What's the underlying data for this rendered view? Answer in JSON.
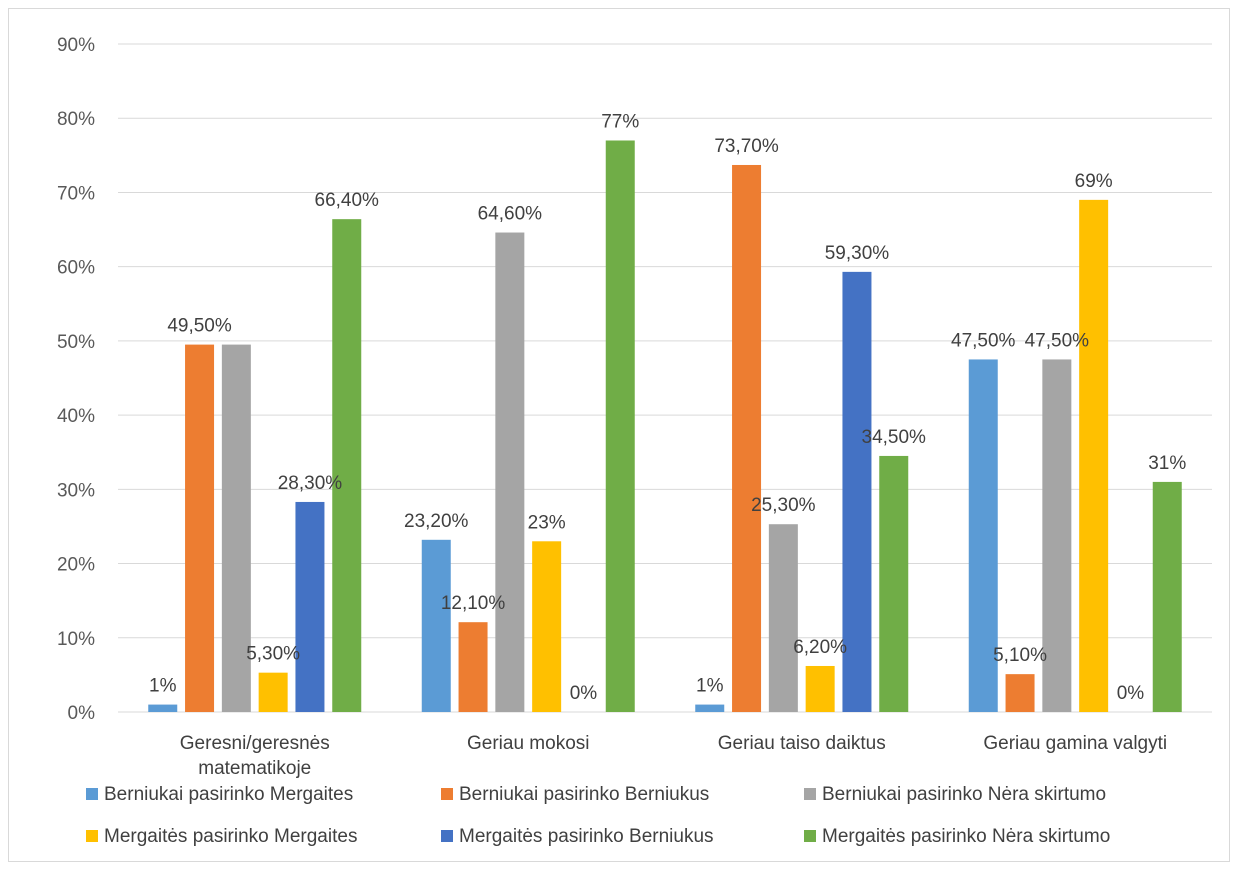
{
  "chart_data": {
    "type": "bar",
    "categories": [
      [
        "Geresni/geresnės",
        "matematikoje"
      ],
      [
        "Geriau mokosi"
      ],
      [
        "Geriau taiso daiktus"
      ],
      [
        "Geriau gamina valgyti"
      ]
    ],
    "series": [
      {
        "name": "Berniukai pasirinko Mergaites",
        "color": "#5b9bd5",
        "values": [
          1,
          23.2,
          1,
          47.5
        ],
        "labels": [
          "1%",
          "23,20%",
          "1%",
          "47,50%"
        ]
      },
      {
        "name": "Berniukai pasirinko Berniukus",
        "color": "#ed7d31",
        "values": [
          49.5,
          12.1,
          73.7,
          5.1
        ],
        "labels": [
          "49,50%",
          "12,10%",
          "73,70%",
          "5,10%"
        ]
      },
      {
        "name": "Berniukai pasirinko Nėra skirtumo",
        "color": "#a5a5a5",
        "values": [
          49.5,
          64.6,
          25.3,
          47.5
        ],
        "labels": [
          "",
          "64,60%",
          "25,30%",
          "47,50%"
        ]
      },
      {
        "name": "Mergaitės pasirinko Mergaites",
        "color": "#ffc000",
        "values": [
          5.3,
          23,
          6.2,
          69
        ],
        "labels": [
          "5,30%",
          "23%",
          "6,20%",
          "69%"
        ]
      },
      {
        "name": "Mergaitės pasirinko Berniukus",
        "color": "#4472c4",
        "values": [
          28.3,
          0,
          59.3,
          0
        ],
        "labels": [
          "28,30%",
          "0%",
          "59,30%",
          "0%"
        ]
      },
      {
        "name": "Mergaitės pasirinko Nėra skirtumo",
        "color": "#70ad47",
        "values": [
          66.4,
          77,
          34.5,
          31
        ],
        "labels": [
          "66,40%",
          "77%",
          "34,50%",
          "31%"
        ]
      }
    ],
    "yticks": [
      "0%",
      "10%",
      "20%",
      "30%",
      "40%",
      "50%",
      "60%",
      "70%",
      "80%",
      "90%"
    ],
    "ylim": [
      0,
      90
    ],
    "grid": true,
    "legend": "bottom"
  }
}
